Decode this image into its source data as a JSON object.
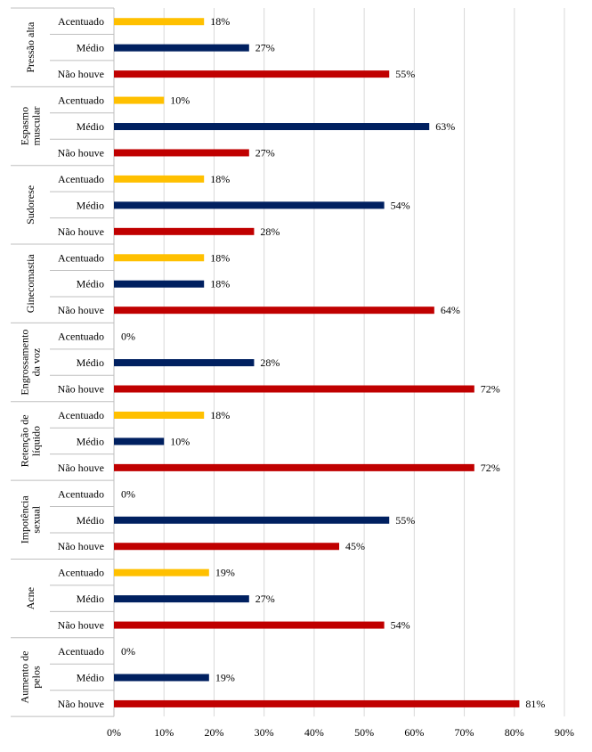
{
  "chart_data": {
    "type": "bar",
    "orientation": "horizontal",
    "xlim": [
      0,
      90
    ],
    "x_ticks": [
      "0%",
      "10%",
      "20%",
      "30%",
      "40%",
      "50%",
      "60%",
      "70%",
      "80%",
      "90%"
    ],
    "categories": [
      "Acentuado",
      "Médio",
      "Não houve"
    ],
    "colors": {
      "Acentuado": "#FFC000",
      "Médio": "#002060",
      "Não houve": "#C00000"
    },
    "grid": "vertical",
    "groups": [
      {
        "label": [
          "Pressão alta"
        ],
        "values": [
          18,
          27,
          55
        ],
        "labels": [
          "18%",
          "27%",
          "55%"
        ]
      },
      {
        "label": [
          "Espasmo",
          "muscular"
        ],
        "values": [
          10,
          63,
          27
        ],
        "labels": [
          "10%",
          "63%",
          "27%"
        ]
      },
      {
        "label": [
          "Sudorese"
        ],
        "values": [
          18,
          54,
          28
        ],
        "labels": [
          "18%",
          "54%",
          "28%"
        ]
      },
      {
        "label": [
          "Ginecomastia"
        ],
        "values": [
          18,
          18,
          64
        ],
        "labels": [
          "18%",
          "18%",
          "64%"
        ]
      },
      {
        "label": [
          "Engrossamento",
          "da voz"
        ],
        "values": [
          0,
          28,
          72
        ],
        "labels": [
          "0%",
          "28%",
          "72%"
        ]
      },
      {
        "label": [
          "Retenção de",
          "líquido"
        ],
        "values": [
          18,
          10,
          72
        ],
        "labels": [
          "18%",
          "10%",
          "72%"
        ]
      },
      {
        "label": [
          "Impotência",
          "sexual"
        ],
        "values": [
          0,
          55,
          45
        ],
        "labels": [
          "0%",
          "55%",
          "45%"
        ]
      },
      {
        "label": [
          "Acne"
        ],
        "values": [
          19,
          27,
          54
        ],
        "labels": [
          "19%",
          "27%",
          "54%"
        ]
      },
      {
        "label": [
          "Aumento de",
          "pelos"
        ],
        "values": [
          0,
          19,
          81
        ],
        "labels": [
          "0%",
          "19%",
          "81%"
        ]
      }
    ]
  }
}
